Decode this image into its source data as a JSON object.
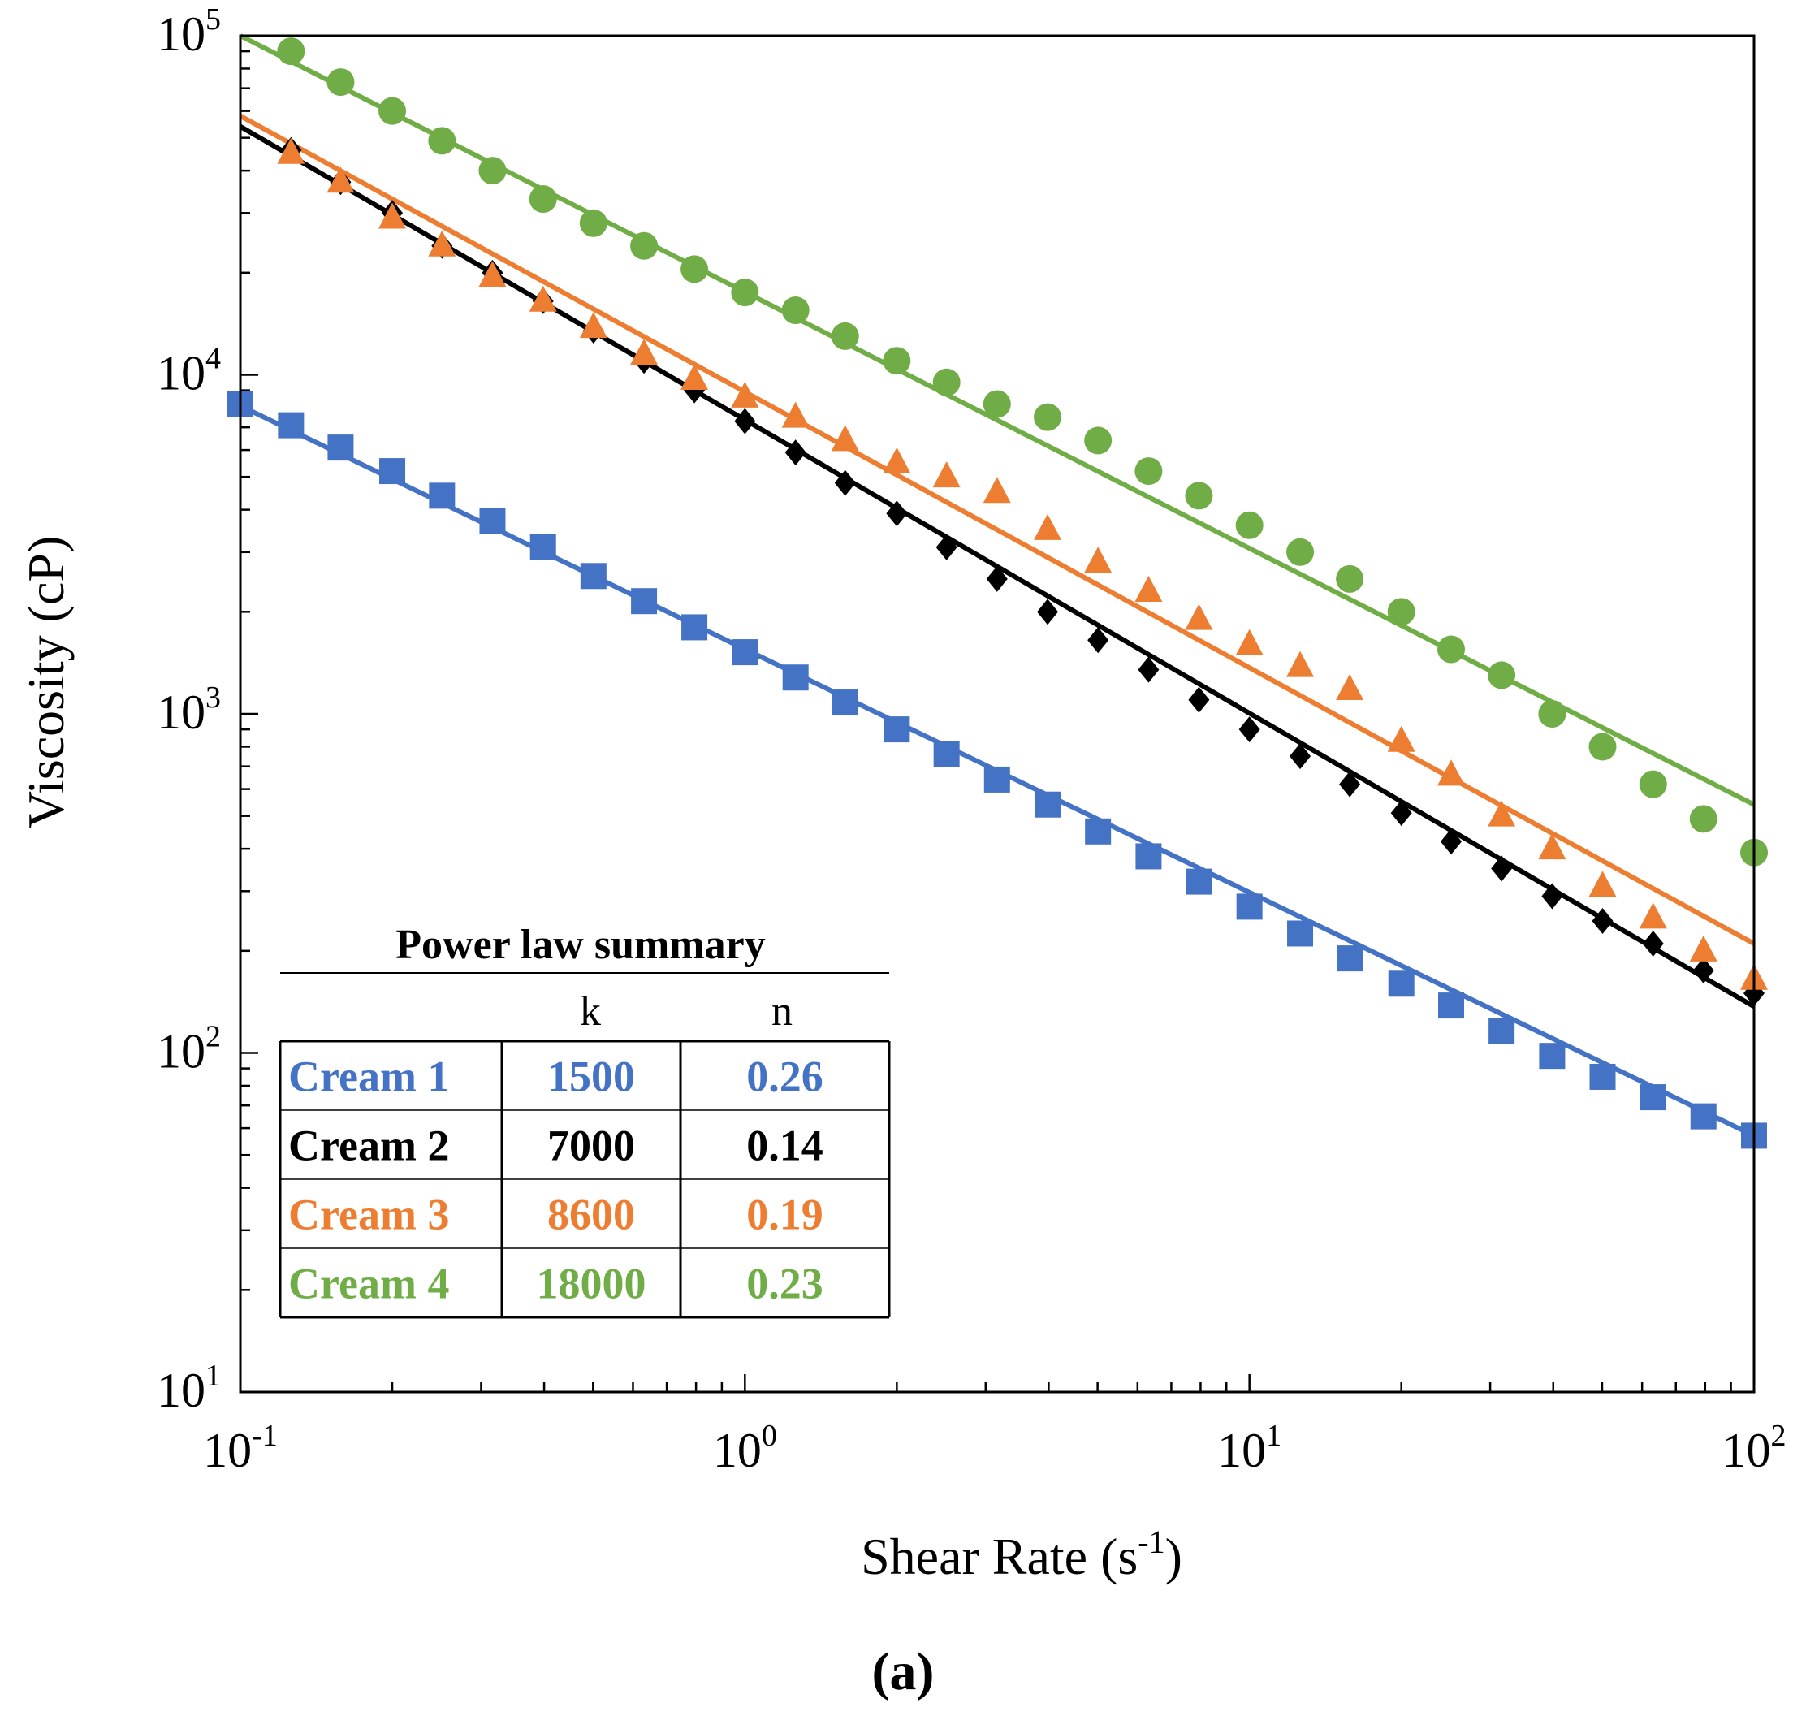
{
  "chart_data": {
    "type": "scatter",
    "title": "",
    "xlabel": "Shear Rate (s",
    "xlabel_exp": "-1",
    "xlabel_close": ")",
    "ylabel": "Viscosity (cP)",
    "xscale": "log",
    "yscale": "log",
    "xlim": [
      0.1,
      100
    ],
    "ylim": [
      10,
      100000
    ],
    "x_ticks": [
      {
        "base": "10",
        "exp": "-1",
        "value": 0.1
      },
      {
        "base": "10",
        "exp": "0",
        "value": 1
      },
      {
        "base": "10",
        "exp": "1",
        "value": 10
      },
      {
        "base": "10",
        "exp": "2",
        "value": 100
      }
    ],
    "y_ticks": [
      {
        "base": "10",
        "exp": "1",
        "value": 10
      },
      {
        "base": "10",
        "exp": "2",
        "value": 100
      },
      {
        "base": "10",
        "exp": "3",
        "value": 1000
      },
      {
        "base": "10",
        "exp": "4",
        "value": 10000
      },
      {
        "base": "10",
        "exp": "5",
        "value": 100000
      }
    ],
    "series": [
      {
        "name": "Cream 1",
        "color": "#4472C4",
        "marker": "square",
        "k": 1500,
        "n": 0.26,
        "x": [
          0.1,
          0.126,
          0.158,
          0.2,
          0.251,
          0.316,
          0.398,
          0.501,
          0.631,
          0.794,
          1,
          1.26,
          1.58,
          2,
          2.51,
          3.16,
          3.98,
          5.01,
          6.31,
          7.94,
          10,
          12.6,
          15.8,
          20,
          25.1,
          31.6,
          39.8,
          50.1,
          63.1,
          79.4,
          100
        ],
        "y": [
          8200,
          7100,
          6100,
          5200,
          4400,
          3700,
          3100,
          2550,
          2150,
          1800,
          1520,
          1280,
          1080,
          900,
          760,
          640,
          540,
          450,
          380,
          320,
          270,
          225,
          190,
          160,
          138,
          116,
          98,
          85,
          74,
          65,
          57
        ]
      },
      {
        "name": "Cream 2",
        "color": "#000000",
        "marker": "diamond",
        "k": 7000,
        "n": 0.14,
        "x": [
          0.126,
          0.158,
          0.2,
          0.251,
          0.316,
          0.398,
          0.501,
          0.631,
          0.794,
          1,
          1.26,
          1.58,
          2,
          2.51,
          3.16,
          3.98,
          5.01,
          6.31,
          7.94,
          10,
          12.6,
          15.8,
          20,
          25.1,
          31.6,
          39.8,
          50.1,
          63.1,
          79.4,
          100
        ],
        "y": [
          46000,
          37000,
          30000,
          24000,
          20000,
          16500,
          13500,
          11000,
          9000,
          7300,
          5900,
          4800,
          3900,
          3100,
          2500,
          2000,
          1650,
          1350,
          1100,
          900,
          750,
          620,
          510,
          420,
          350,
          290,
          245,
          210,
          175,
          150
        ]
      },
      {
        "name": "Cream 3",
        "color": "#ED7D31",
        "marker": "triangle",
        "k": 8600,
        "n": 0.19,
        "x": [
          0.126,
          0.158,
          0.2,
          0.251,
          0.316,
          0.398,
          0.501,
          0.631,
          0.794,
          1,
          1.26,
          1.58,
          2,
          2.51,
          3.16,
          3.98,
          5.01,
          6.31,
          7.94,
          10,
          12.6,
          15.8,
          20,
          25.1,
          31.6,
          39.8,
          50.1,
          63.1,
          79.4,
          100
        ],
        "y": [
          45000,
          37000,
          29000,
          24000,
          19500,
          16500,
          13800,
          11500,
          9700,
          8600,
          7500,
          6400,
          5500,
          5000,
          4500,
          3500,
          2800,
          2300,
          1900,
          1600,
          1380,
          1180,
          830,
          660,
          500,
          400,
          310,
          250,
          200,
          165
        ]
      },
      {
        "name": "Cream 4",
        "color": "#70AD47",
        "marker": "circle",
        "k": 18000,
        "n": 0.23,
        "x": [
          0.126,
          0.158,
          0.2,
          0.251,
          0.316,
          0.398,
          0.501,
          0.631,
          0.794,
          1,
          1.26,
          1.58,
          2,
          2.51,
          3.16,
          3.98,
          5.01,
          6.31,
          7.94,
          10,
          12.6,
          15.8,
          20,
          25.1,
          31.6,
          39.8,
          50.1,
          63.1,
          79.4,
          100
        ],
        "y": [
          90000,
          73000,
          60000,
          49000,
          40000,
          33000,
          28000,
          24000,
          20500,
          17500,
          15500,
          13000,
          11000,
          9500,
          8200,
          7500,
          6400,
          5200,
          4400,
          3600,
          3000,
          2500,
          2000,
          1550,
          1300,
          1000,
          800,
          620,
          490,
          390
        ]
      }
    ],
    "fit_lines": [
      {
        "series": "Cream 1",
        "color": "#4472C4",
        "x": [
          0.1,
          100
        ],
        "y": [
          8100,
          57
        ]
      },
      {
        "series": "Cream 2",
        "color": "#000000",
        "x": [
          0.1,
          100
        ],
        "y": [
          54000,
          137
        ]
      },
      {
        "series": "Cream 3",
        "color": "#ED7D31",
        "x": [
          0.1,
          100
        ],
        "y": [
          58000,
          210
        ]
      },
      {
        "series": "Cream 4",
        "color": "#70AD47",
        "x": [
          0.1,
          100
        ],
        "y": [
          100000,
          540
        ]
      }
    ],
    "legend": {
      "title": "Power law summary",
      "col_k": "k",
      "col_n": "n",
      "placement": "bottom-left",
      "rows": [
        {
          "name": "Cream 1",
          "k": "1500",
          "n": "0.26",
          "color": "#4472C4"
        },
        {
          "name": "Cream 2",
          "k": "7000",
          "n": "0.14",
          "color": "#000000"
        },
        {
          "name": "Cream 3",
          "k": "8600",
          "n": "0.19",
          "color": "#ED7D31"
        },
        {
          "name": "Cream 4",
          "k": "18000",
          "n": "0.23",
          "color": "#70AD47"
        }
      ]
    },
    "subfigure_label": "(a)"
  }
}
